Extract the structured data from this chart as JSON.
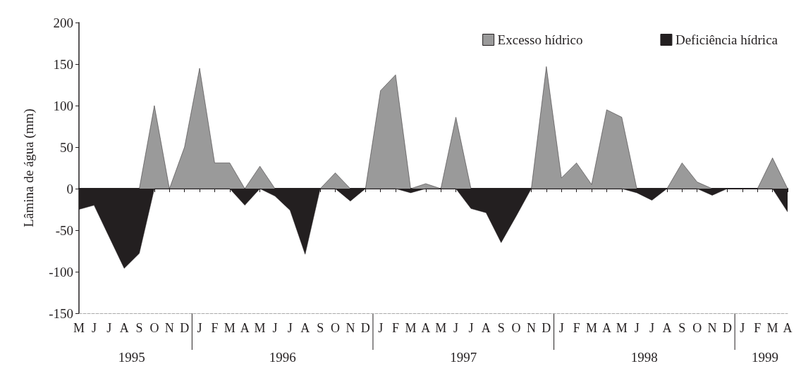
{
  "chart_data": {
    "type": "area",
    "ylabel": "Lâmina de água (mm)",
    "categories": [
      "M",
      "J",
      "J",
      "A",
      "S",
      "O",
      "N",
      "D",
      "J",
      "F",
      "M",
      "A",
      "M",
      "J",
      "J",
      "A",
      "S",
      "O",
      "N",
      "D",
      "J",
      "F",
      "M",
      "A",
      "M",
      "J",
      "J",
      "A",
      "S",
      "O",
      "N",
      "D",
      "J",
      "F",
      "M",
      "A",
      "M",
      "J",
      "J",
      "A",
      "S",
      "O",
      "N",
      "D",
      "J",
      "F",
      "M",
      "A"
    ],
    "series": [
      {
        "name": "Excesso hídrico",
        "color": "#9a9a9a",
        "values": [
          0,
          0,
          0,
          0,
          0,
          100,
          0,
          50,
          145,
          31,
          31,
          0,
          27,
          0,
          0,
          0,
          0,
          19,
          0,
          0,
          118,
          137,
          0,
          6,
          0,
          86,
          0,
          0,
          0,
          0,
          0,
          147,
          13,
          31,
          5,
          95,
          86,
          0,
          0,
          0,
          31,
          8,
          0,
          0,
          0,
          0,
          37,
          0
        ]
      },
      {
        "name": "Deficiência hídrica",
        "color": "#231f20",
        "values": [
          -25,
          -20,
          -58,
          -96,
          -78,
          0,
          0,
          0,
          0,
          0,
          0,
          -20,
          0,
          -9,
          -26,
          -79,
          0,
          0,
          -15,
          0,
          0,
          0,
          -5,
          0,
          0,
          0,
          -24,
          -29,
          -65,
          -33,
          0,
          0,
          0,
          0,
          0,
          0,
          0,
          -5,
          -14,
          0,
          0,
          0,
          -8,
          0,
          0,
          0,
          0,
          -28
        ]
      }
    ],
    "ylim": [
      -150,
      200
    ],
    "yticks": [
      -150,
      -100,
      -50,
      0,
      50,
      100,
      150,
      200
    ],
    "legend": "top right",
    "marker": "none",
    "annotations": [
      "1995",
      "1996",
      "1997",
      "1998",
      "1999"
    ]
  }
}
